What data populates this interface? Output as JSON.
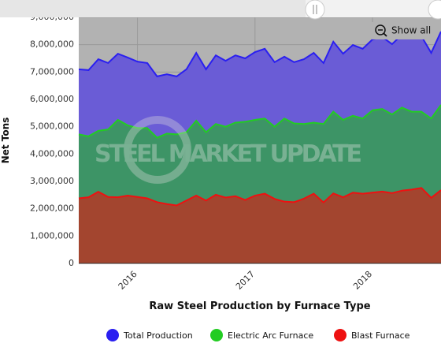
{
  "chart_data": {
    "type": "area",
    "x_label": "Raw Steel Production by Furnace Type",
    "y_label": "Net Tons",
    "watermark": "STEEL MARKET UPDATE",
    "button": "Show all",
    "categories": [
      null,
      null,
      null,
      null,
      null,
      null,
      "2016",
      null,
      null,
      null,
      null,
      null,
      null,
      null,
      null,
      null,
      null,
      null,
      "2017",
      null,
      null,
      null,
      null,
      null,
      null,
      null,
      null,
      null,
      null,
      null,
      "2018",
      null,
      null,
      null,
      null,
      null,
      null,
      null
    ],
    "ylim": [
      0,
      9000000
    ],
    "yticks": [
      0,
      {
        "value": 1000000,
        "label": "1,000,000"
      },
      {
        "value": 2000000,
        "label": "2,000,000"
      },
      {
        "value": 3000000,
        "label": "3,000,000"
      },
      {
        "value": 4000000,
        "label": "4,000,000"
      },
      {
        "value": 5000000,
        "label": "5,000,000"
      },
      {
        "value": 6000000,
        "label": "6,000,000"
      },
      {
        "value": 7000000,
        "label": "7,000,000"
      },
      {
        "value": 8000000,
        "label": "8,000,000"
      },
      {
        "value": 9000000,
        "label": "9,000,000"
      }
    ],
    "grid": true,
    "legend": "bottom",
    "series": [
      {
        "name": "Total Production",
        "color": "#2a1ff0",
        "fill": "#6a5cd6",
        "values": [
          7100000,
          7070000,
          7470000,
          7330000,
          7670000,
          7530000,
          7380000,
          7330000,
          6840000,
          6920000,
          6840000,
          7100000,
          7700000,
          7100000,
          7610000,
          7410000,
          7610000,
          7500000,
          7730000,
          7850000,
          7360000,
          7560000,
          7360000,
          7470000,
          7700000,
          7330000,
          8110000,
          7670000,
          7990000,
          7850000,
          8190000,
          8280000,
          8020000,
          8360000,
          8250000,
          8310000,
          7700000,
          8480000
        ]
      },
      {
        "name": "Electric Arc Furnace",
        "color": "#22cc22",
        "fill": "#3d9466",
        "values": [
          4720000,
          4650000,
          4850000,
          4900000,
          5250000,
          5050000,
          4950000,
          4950000,
          4600000,
          4750000,
          4720000,
          4800000,
          5220000,
          4800000,
          5100000,
          5000000,
          5150000,
          5180000,
          5250000,
          5300000,
          5000000,
          5300000,
          5120000,
          5100000,
          5150000,
          5100000,
          5550000,
          5250000,
          5400000,
          5300000,
          5600000,
          5650000,
          5450000,
          5700000,
          5550000,
          5550000,
          5300000,
          5800000
        ]
      },
      {
        "name": "Blast Furnace",
        "color": "#ee1111",
        "fill": "#a3452f",
        "values": [
          2380000,
          2420000,
          2620000,
          2430000,
          2420000,
          2480000,
          2430000,
          2380000,
          2240000,
          2170000,
          2120000,
          2300000,
          2480000,
          2300000,
          2510000,
          2410000,
          2460000,
          2320000,
          2480000,
          2550000,
          2360000,
          2260000,
          2240000,
          2370000,
          2550000,
          2230000,
          2560000,
          2420000,
          2590000,
          2550000,
          2590000,
          2630000,
          2570000,
          2660000,
          2700000,
          2760000,
          2400000,
          2680000
        ]
      }
    ]
  }
}
